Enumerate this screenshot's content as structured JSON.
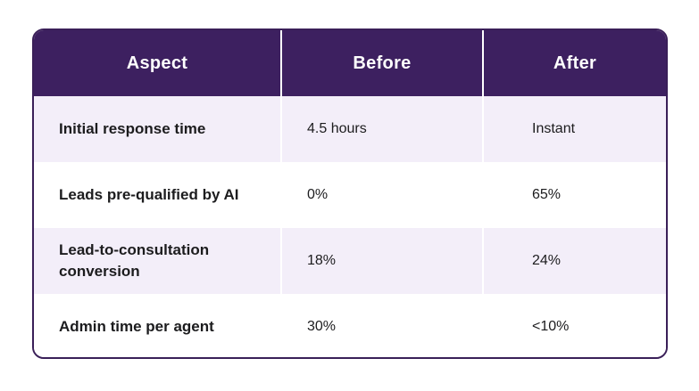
{
  "chart_data": {
    "type": "table",
    "title": "",
    "columns": [
      "Aspect",
      "Before",
      "After"
    ],
    "rows": [
      [
        "Initial response time",
        "4.5 hours",
        "Instant"
      ],
      [
        "Leads pre-qualified by AI",
        "0%",
        "65%"
      ],
      [
        "Lead-to-consultation conversion",
        "18%",
        "24%"
      ],
      [
        "Admin time per agent",
        "30%",
        "<10%"
      ]
    ],
    "layout_hints": {
      "header_alignment": "center",
      "body_alignment": "left",
      "alternating_rows": true
    }
  },
  "colors": {
    "header_bg": "#3d2060",
    "border": "#3a1f58",
    "row_alt_bg": "#f3eef9",
    "row_bg": "#ffffff",
    "header_text": "#ffffff",
    "body_text": "#1c1c1e",
    "column_separator": "#ffffff",
    "page_bg": "#ffffff"
  }
}
